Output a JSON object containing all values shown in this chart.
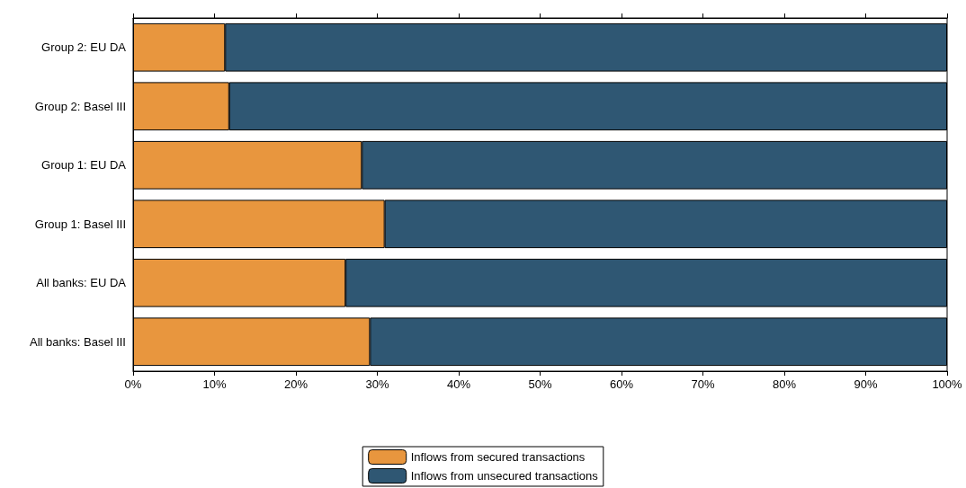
{
  "chart_data": {
    "type": "bar",
    "orientation": "horizontal",
    "stacked": true,
    "grid": false,
    "legend": "bottom",
    "categories": [
      "Group 2: EU DA",
      "Group 2: Basel III",
      "Group 1: EU DA",
      "Group 1: Basel III",
      "All banks: EU DA",
      "All banks: Basel III"
    ],
    "series": [
      {
        "name": "Inflows from secured transactions",
        "color": "#e8963e",
        "values": [
          11.3,
          11.8,
          28.1,
          30.9,
          26.1,
          29.1
        ]
      },
      {
        "name": "Inflows from unsecured transactions",
        "color": "#2f5773",
        "values": [
          88.7,
          88.2,
          71.9,
          69.1,
          73.9,
          70.9
        ]
      }
    ],
    "xlim": [
      0,
      100
    ],
    "xticks": [
      {
        "value": 0,
        "label": "0%"
      },
      {
        "value": 10,
        "label": "10%"
      },
      {
        "value": 20,
        "label": "20%"
      },
      {
        "value": 30,
        "label": "30%"
      },
      {
        "value": 40,
        "label": "40%"
      },
      {
        "value": 50,
        "label": "50%"
      },
      {
        "value": 60,
        "label": "60%"
      },
      {
        "value": 70,
        "label": "70%"
      },
      {
        "value": 80,
        "label": "80%"
      },
      {
        "value": 90,
        "label": "90%"
      },
      {
        "value": 100,
        "label": "100%"
      }
    ]
  }
}
